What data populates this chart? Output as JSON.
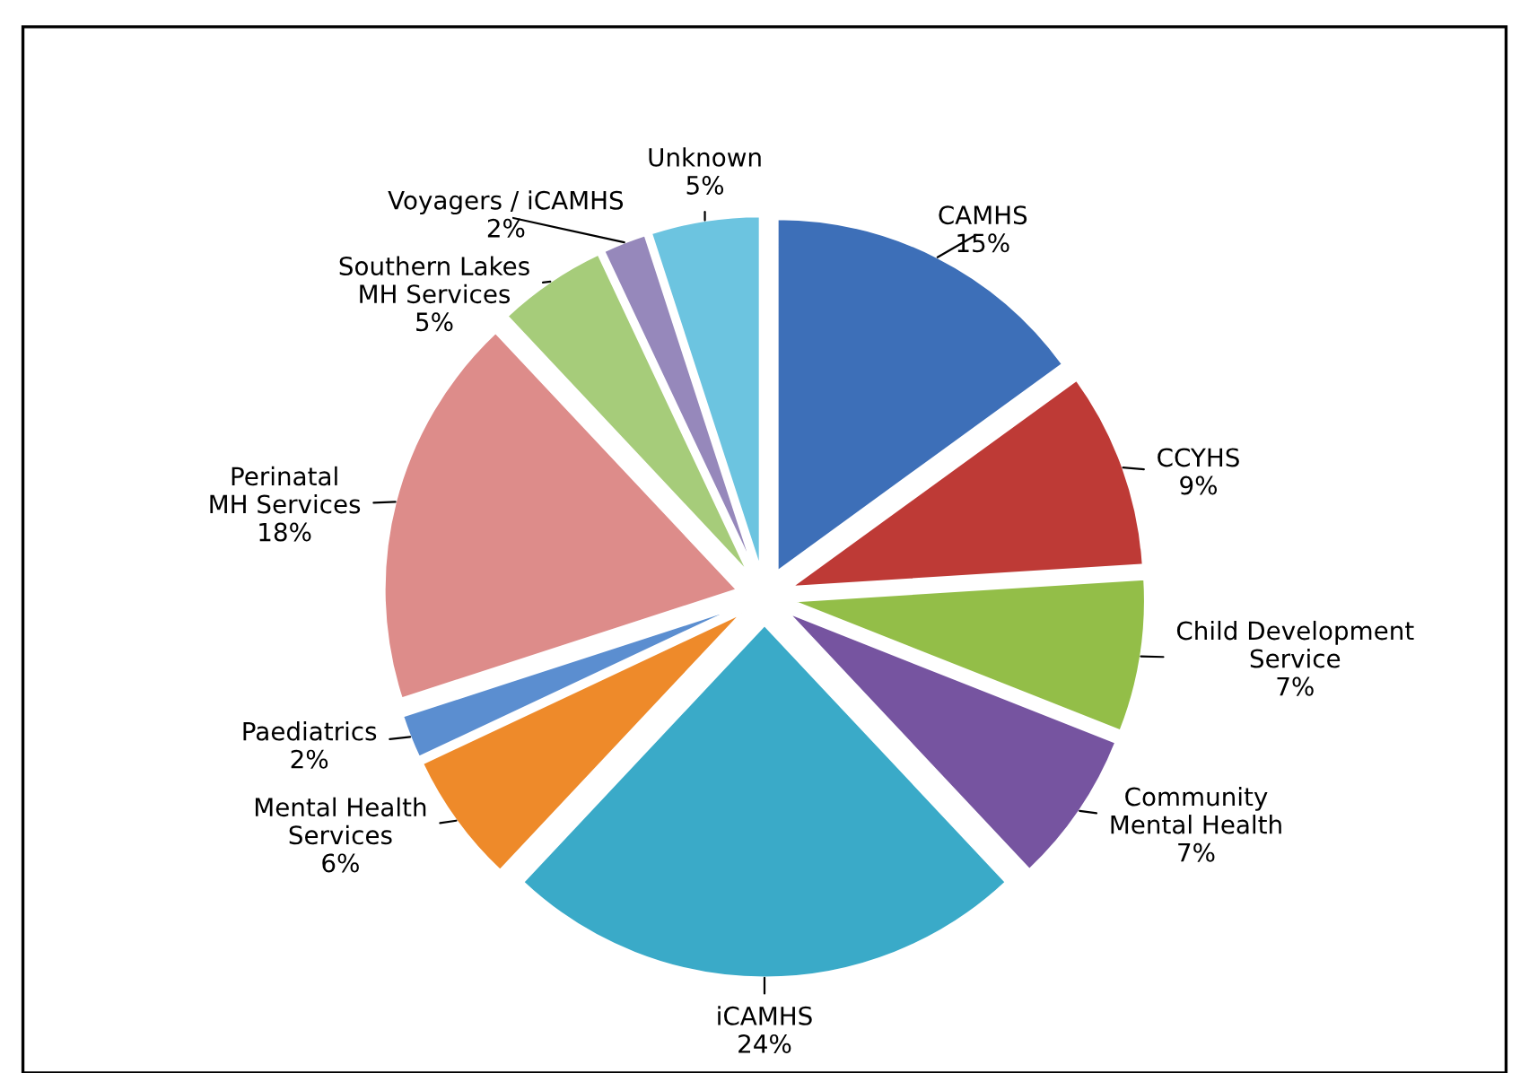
{
  "chart_data": {
    "type": "pie",
    "categories": [
      "CAMHS",
      "CCYHS",
      "Child Development Service",
      "Community Mental Health",
      "iCAMHS",
      "Mental Health Services",
      "Paediatrics",
      "Perinatal MH Services",
      "Southern Lakes MH Services",
      "Voyagers / iCAMHS",
      "Unknown"
    ],
    "values": [
      15,
      9,
      7,
      7,
      24,
      6,
      2,
      18,
      5,
      2,
      5
    ],
    "value_labels": [
      "15%",
      "9%",
      "7%",
      "7%",
      "24%",
      "6%",
      "2%",
      "18%",
      "5%",
      "2%",
      "5%"
    ],
    "colors": [
      "#3d6fb8",
      "#be3a36",
      "#93be48",
      "#7654a0",
      "#3aaac8",
      "#ee8a2a",
      "#5b8ed0",
      "#dd8c8a",
      "#a6cc7a",
      "#9688bb",
      "#6cc4e0"
    ],
    "legend": false
  }
}
